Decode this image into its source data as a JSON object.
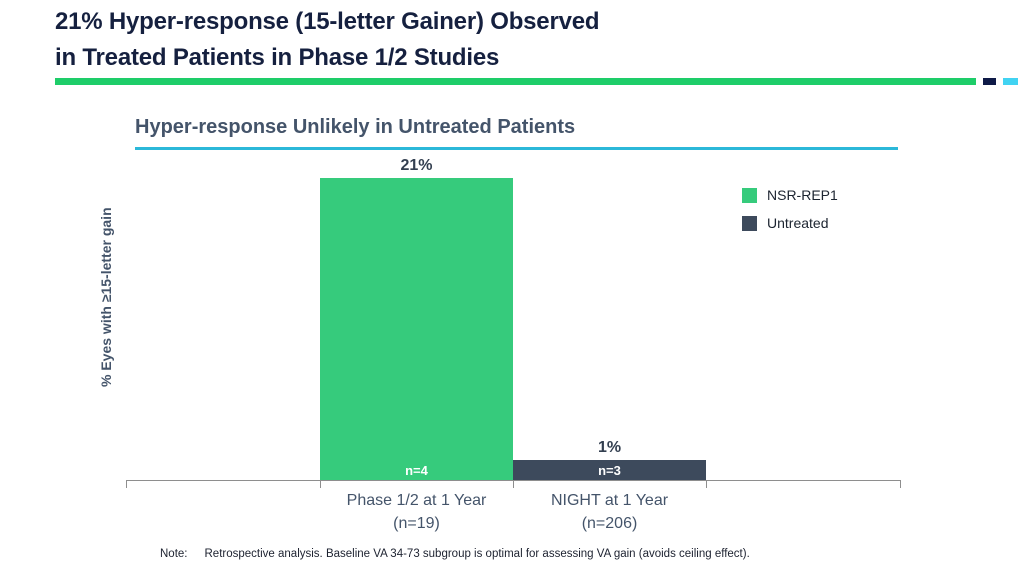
{
  "slide": {
    "title_line1": "21% Hyper-response (15-letter Gainer) Observed",
    "title_line2": "in Treated Patients in Phase 1/2 Studies"
  },
  "colors": {
    "title_navy": "#15203F",
    "slate_text": "#44546A",
    "divider_green": "#1ECD69",
    "navy_square": "#0E1A47",
    "cyan_square": "#41D3F2",
    "cyan_rule": "#2BB8D9",
    "axis_gray": "#8E8E8E",
    "bar_green": "#36CB7C",
    "bar_dark": "#3D4A5C"
  },
  "chart_data": {
    "type": "bar",
    "title": "Hyper-response Unlikely in Untreated Patients",
    "ylabel": "% Eyes with ≥15-letter gain",
    "xlabel": "",
    "ylim": [
      0,
      23
    ],
    "grid": false,
    "legend_position": "right",
    "categories": [
      "Phase 1/2 at 1 Year (n=19)",
      "NIGHT at 1 Year (n=206)"
    ],
    "categories_lines": [
      [
        "Phase 1/2 at 1 Year",
        "(n=19)"
      ],
      [
        "NIGHT at 1 Year",
        "(n=206)"
      ]
    ],
    "series": [
      {
        "name": "NSR-REP1",
        "color": "#36CB7C",
        "value": 21,
        "value_label": "21%",
        "bar_label": "n=4"
      },
      {
        "name": "Untreated",
        "color": "#3D4A5C",
        "value": 1,
        "value_label": "1%",
        "bar_label": "n=3"
      }
    ]
  },
  "note": {
    "label": "Note:",
    "text": "Retrospective analysis. Baseline VA 34-73 subgroup is optimal for assessing VA gain (avoids ceiling effect)."
  }
}
